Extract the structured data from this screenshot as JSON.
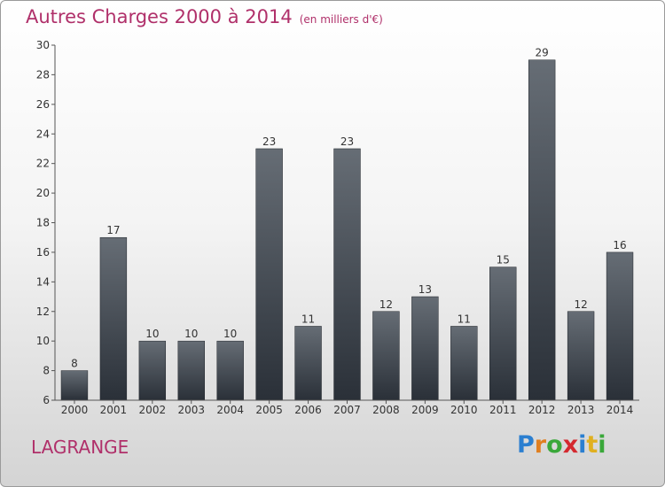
{
  "header": {
    "title": "Autres Charges 2000 à 2014",
    "subtitle": "(en milliers d'€)"
  },
  "footer": {
    "commune": "LAGRANGE",
    "logo_letters": [
      {
        "char": "P",
        "color": "#2b7fd0"
      },
      {
        "char": "r",
        "color": "#e07f20"
      },
      {
        "char": "o",
        "color": "#3aa83a"
      },
      {
        "char": "x",
        "color": "#d4292f"
      },
      {
        "char": "i",
        "color": "#2b7fd0"
      },
      {
        "char": "t",
        "color": "#e0b020"
      },
      {
        "char": "i",
        "color": "#3aa83a"
      }
    ]
  },
  "colors": {
    "accent": "#b0306a",
    "bar_top": "#666d75",
    "bar_bottom": "#2a3038"
  },
  "chart_data": {
    "type": "bar",
    "title": "Autres Charges 2000 à 2014",
    "subtitle": "(en milliers d'€)",
    "categories": [
      "2000",
      "2001",
      "2002",
      "2003",
      "2004",
      "2005",
      "2006",
      "2007",
      "2008",
      "2009",
      "2010",
      "2011",
      "2012",
      "2013",
      "2014"
    ],
    "values": [
      8,
      17,
      10,
      10,
      10,
      23,
      11,
      23,
      12,
      13,
      11,
      15,
      29,
      12,
      16
    ],
    "ylim": [
      6,
      30
    ],
    "yticks": [
      6,
      8,
      10,
      12,
      14,
      16,
      18,
      20,
      22,
      24,
      26,
      28,
      30
    ],
    "grid": false,
    "data_labels": true
  }
}
